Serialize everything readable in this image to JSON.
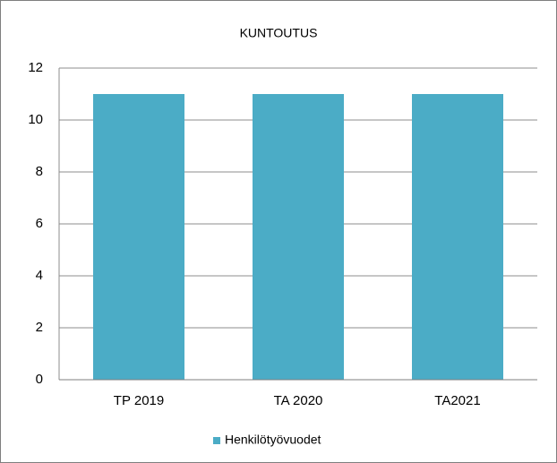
{
  "chart_data": {
    "type": "bar",
    "title": "KUNTOUTUS",
    "categories": [
      "TP 2019",
      "TA 2020",
      "TA2021"
    ],
    "series": [
      {
        "name": "Henkilötyövuodet",
        "color": "#4bacc6",
        "values": [
          11,
          11,
          11
        ]
      }
    ],
    "ylim": [
      0,
      12
    ],
    "yticks": [
      0,
      2,
      4,
      6,
      8,
      10,
      12
    ],
    "grid": true,
    "legend": "bottom"
  }
}
